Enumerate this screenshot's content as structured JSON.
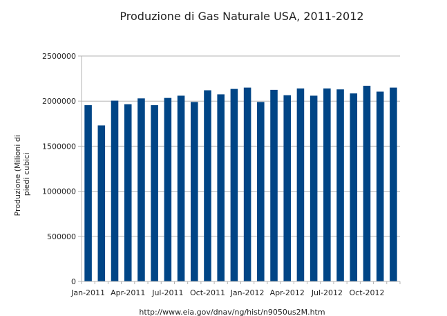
{
  "chart_data": {
    "type": "bar",
    "title": "Produzione di Gas Naturale USA, 2011-2012",
    "xlabel": "",
    "ylabel_lines": [
      "Produzione (Milioni di",
      "piedi cubici"
    ],
    "ylim": [
      0,
      2500000
    ],
    "yticks": [
      "0",
      "500000",
      "1000000",
      "1500000",
      "2000000",
      "2500000"
    ],
    "ytick_values": [
      0,
      500000,
      1000000,
      1500000,
      2000000,
      2500000
    ],
    "categories": [
      "Jan-2011",
      "Feb-2011",
      "Mar-2011",
      "Apr-2011",
      "May-2011",
      "Jun-2011",
      "Jul-2011",
      "Aug-2011",
      "Sep-2011",
      "Oct-2011",
      "Nov-2011",
      "Dec-2011",
      "Jan-2012",
      "Feb-2012",
      "Mar-2012",
      "Apr-2012",
      "May-2012",
      "Jun-2012",
      "Jul-2012",
      "Aug-2012",
      "Sep-2012",
      "Oct-2012",
      "Nov-2012",
      "Dec-2012"
    ],
    "xtick_labels": [
      {
        "index": 0,
        "label": "Jan-2011"
      },
      {
        "index": 3,
        "label": "Apr-2011"
      },
      {
        "index": 6,
        "label": "Jul-2011"
      },
      {
        "index": 9,
        "label": "Oct-2011"
      },
      {
        "index": 12,
        "label": "Jan-2012"
      },
      {
        "index": 15,
        "label": "Apr-2012"
      },
      {
        "index": 18,
        "label": "Jul-2012"
      },
      {
        "index": 21,
        "label": "Oct-2012"
      }
    ],
    "values": [
      1955000,
      1730000,
      2005000,
      1965000,
      2030000,
      1955000,
      2035000,
      2060000,
      1990000,
      2120000,
      2075000,
      2135000,
      2150000,
      1990000,
      2125000,
      2065000,
      2140000,
      2060000,
      2140000,
      2130000,
      2085000,
      2170000,
      2105000,
      2150000
    ],
    "grid": "horizontal",
    "legend": "none",
    "bar_color": "#004586",
    "grid_color": "#b3b3b3"
  },
  "source": "http://www.eia.gov/dnav/ng/hist/n9050us2M.htm"
}
